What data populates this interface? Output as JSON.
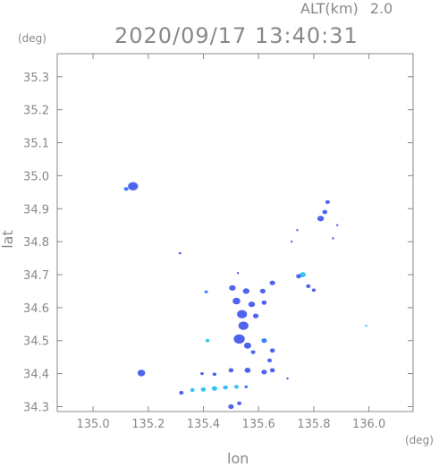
{
  "header": {
    "altitude_label": "ALT(km)",
    "altitude_value": "2.0",
    "timestamp": "2020/09/17 13:40:31"
  },
  "chart_data": {
    "type": "scatter",
    "title": "2020/09/17 13:40:31",
    "xlabel": "lon",
    "ylabel": "lat",
    "x_unit": "(deg)",
    "y_unit": "(deg)",
    "xlim": [
      134.87,
      136.16
    ],
    "ylim": [
      34.285,
      35.37
    ],
    "x_ticks": [
      135.0,
      135.2,
      135.4,
      135.6,
      135.8,
      136.0
    ],
    "x_tick_labels": [
      "135.0",
      "135.2",
      "135.4",
      "135.6",
      "135.8",
      "136.0"
    ],
    "y_ticks": [
      34.3,
      34.4,
      34.5,
      34.6,
      34.7,
      34.8,
      34.9,
      35.0,
      35.1,
      35.2,
      35.3
    ],
    "y_tick_labels": [
      "34.3",
      "34.4",
      "34.5",
      "34.6",
      "34.7",
      "34.8",
      "34.9",
      "35.0",
      "35.1",
      "35.2",
      "35.3"
    ],
    "grid": false,
    "colors": {
      "main": "#4e63ee",
      "secondary": "#3a80f5",
      "weak": "#33c5ee",
      "axis": "#888888"
    },
    "echoes": [
      {
        "lon": 135.145,
        "lat": 34.968,
        "r": 0.018,
        "level": "main"
      },
      {
        "lon": 135.12,
        "lat": 34.96,
        "r": 0.008,
        "level": "secondary"
      },
      {
        "lon": 135.175,
        "lat": 34.402,
        "r": 0.014,
        "level": "main"
      },
      {
        "lon": 135.315,
        "lat": 34.765,
        "r": 0.005,
        "level": "main"
      },
      {
        "lon": 135.415,
        "lat": 34.5,
        "r": 0.007,
        "level": "weak"
      },
      {
        "lon": 135.41,
        "lat": 34.648,
        "r": 0.006,
        "level": "secondary"
      },
      {
        "lon": 135.525,
        "lat": 34.705,
        "r": 0.004,
        "level": "main"
      },
      {
        "lon": 135.505,
        "lat": 34.66,
        "r": 0.012,
        "level": "main"
      },
      {
        "lon": 135.555,
        "lat": 34.65,
        "r": 0.012,
        "level": "main"
      },
      {
        "lon": 135.615,
        "lat": 34.65,
        "r": 0.01,
        "level": "main"
      },
      {
        "lon": 135.65,
        "lat": 34.675,
        "r": 0.01,
        "level": "main"
      },
      {
        "lon": 135.52,
        "lat": 34.62,
        "r": 0.014,
        "level": "main"
      },
      {
        "lon": 135.575,
        "lat": 34.61,
        "r": 0.012,
        "level": "main"
      },
      {
        "lon": 135.62,
        "lat": 34.615,
        "r": 0.009,
        "level": "main"
      },
      {
        "lon": 135.54,
        "lat": 34.58,
        "r": 0.018,
        "level": "main"
      },
      {
        "lon": 135.59,
        "lat": 34.575,
        "r": 0.01,
        "level": "main"
      },
      {
        "lon": 135.545,
        "lat": 34.545,
        "r": 0.018,
        "level": "main"
      },
      {
        "lon": 135.53,
        "lat": 34.505,
        "r": 0.02,
        "level": "main"
      },
      {
        "lon": 135.56,
        "lat": 34.485,
        "r": 0.013,
        "level": "main"
      },
      {
        "lon": 135.62,
        "lat": 34.5,
        "r": 0.01,
        "level": "secondary"
      },
      {
        "lon": 135.65,
        "lat": 34.47,
        "r": 0.009,
        "level": "main"
      },
      {
        "lon": 135.58,
        "lat": 34.465,
        "r": 0.008,
        "level": "main"
      },
      {
        "lon": 135.64,
        "lat": 34.44,
        "r": 0.008,
        "level": "main"
      },
      {
        "lon": 135.62,
        "lat": 34.405,
        "r": 0.01,
        "level": "main"
      },
      {
        "lon": 135.65,
        "lat": 34.41,
        "r": 0.009,
        "level": "main"
      },
      {
        "lon": 135.56,
        "lat": 34.41,
        "r": 0.011,
        "level": "main"
      },
      {
        "lon": 135.5,
        "lat": 34.41,
        "r": 0.009,
        "level": "main"
      },
      {
        "lon": 135.44,
        "lat": 34.398,
        "r": 0.007,
        "level": "main"
      },
      {
        "lon": 135.395,
        "lat": 34.4,
        "r": 0.006,
        "level": "main"
      },
      {
        "lon": 135.76,
        "lat": 34.7,
        "r": 0.011,
        "level": "weak"
      },
      {
        "lon": 135.745,
        "lat": 34.695,
        "r": 0.009,
        "level": "main"
      },
      {
        "lon": 135.78,
        "lat": 34.665,
        "r": 0.008,
        "level": "main"
      },
      {
        "lon": 135.8,
        "lat": 34.653,
        "r": 0.007,
        "level": "main"
      },
      {
        "lon": 135.825,
        "lat": 34.87,
        "r": 0.012,
        "level": "main"
      },
      {
        "lon": 135.84,
        "lat": 34.89,
        "r": 0.009,
        "level": "main"
      },
      {
        "lon": 135.85,
        "lat": 34.92,
        "r": 0.008,
        "level": "main"
      },
      {
        "lon": 135.87,
        "lat": 34.81,
        "r": 0.004,
        "level": "main"
      },
      {
        "lon": 135.885,
        "lat": 34.85,
        "r": 0.004,
        "level": "main"
      },
      {
        "lon": 135.74,
        "lat": 34.835,
        "r": 0.004,
        "level": "main"
      },
      {
        "lon": 135.72,
        "lat": 34.8,
        "r": 0.003,
        "level": "main"
      },
      {
        "lon": 135.99,
        "lat": 34.545,
        "r": 0.003,
        "level": "weak"
      },
      {
        "lon": 135.32,
        "lat": 34.342,
        "r": 0.008,
        "level": "main"
      },
      {
        "lon": 135.36,
        "lat": 34.35,
        "r": 0.008,
        "level": "weak"
      },
      {
        "lon": 135.4,
        "lat": 34.352,
        "r": 0.009,
        "level": "weak"
      },
      {
        "lon": 135.44,
        "lat": 34.355,
        "r": 0.01,
        "level": "weak"
      },
      {
        "lon": 135.48,
        "lat": 34.358,
        "r": 0.009,
        "level": "weak"
      },
      {
        "lon": 135.52,
        "lat": 34.36,
        "r": 0.008,
        "level": "weak"
      },
      {
        "lon": 135.555,
        "lat": 34.36,
        "r": 0.006,
        "level": "secondary"
      },
      {
        "lon": 135.5,
        "lat": 34.3,
        "r": 0.01,
        "level": "main"
      },
      {
        "lon": 135.53,
        "lat": 34.31,
        "r": 0.008,
        "level": "main"
      },
      {
        "lon": 135.705,
        "lat": 34.385,
        "r": 0.004,
        "level": "main"
      }
    ]
  }
}
